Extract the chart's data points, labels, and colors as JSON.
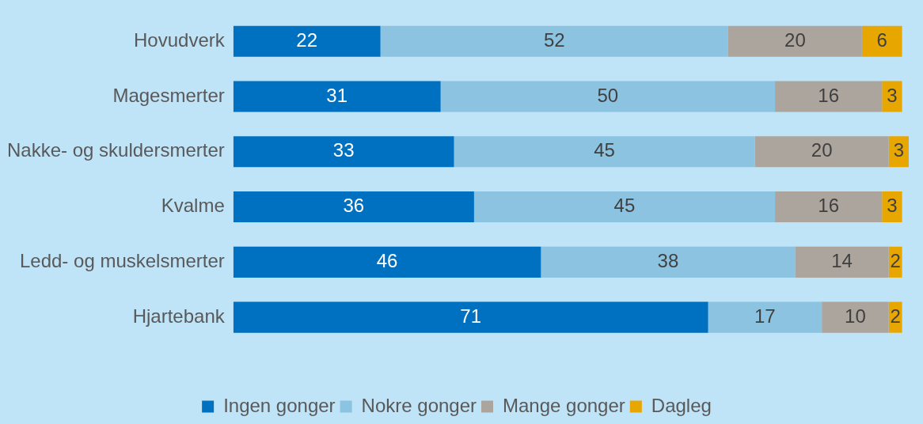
{
  "chart_data": {
    "type": "bar",
    "orientation": "horizontal",
    "stacked": true,
    "data_labels": true,
    "legend": "bottom",
    "tick_labels": "y",
    "categories": [
      "Hovudverk",
      "Magesmerter",
      "Nakke- og skuldersmerter",
      "Kvalme",
      "Ledd- og muskelsmerter",
      "Hjartebank"
    ],
    "series": [
      {
        "name": "Ingen gonger",
        "color": "#0070c0",
        "values": [
          22,
          31,
          33,
          36,
          46,
          71
        ]
      },
      {
        "name": "Nokre gonger",
        "color": "#8cc3e0",
        "values": [
          52,
          50,
          45,
          45,
          38,
          17
        ]
      },
      {
        "name": "Mange gonger",
        "color": "#aca59e",
        "values": [
          20,
          16,
          20,
          16,
          14,
          10
        ]
      },
      {
        "name": "Dagleg",
        "color": "#e8a600",
        "values": [
          6,
          3,
          3,
          3,
          2,
          2
        ]
      }
    ]
  }
}
